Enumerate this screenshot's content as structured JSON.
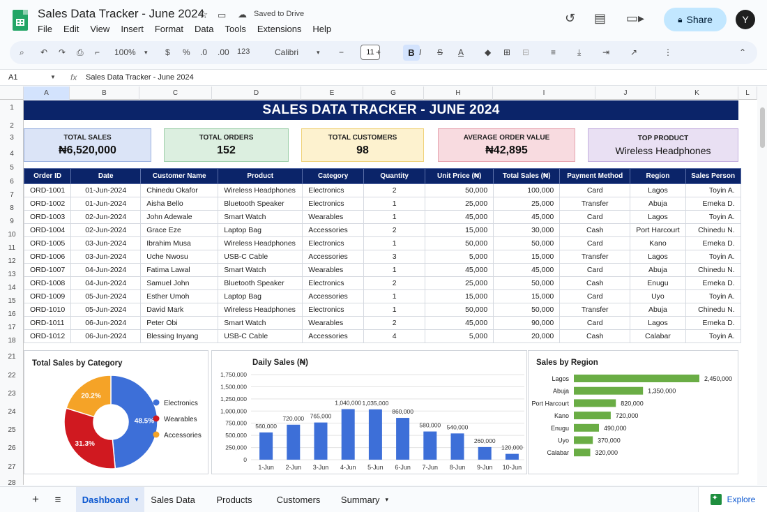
{
  "app": {
    "doc_title": "Sales Data Tracker - June 2024",
    "saved_status": "Saved to Drive",
    "menu": [
      "File",
      "Edit",
      "View",
      "Insert",
      "Format",
      "Data",
      "Tools",
      "Extensions",
      "Help"
    ],
    "share_label": "Share",
    "avatar_initial": "Y"
  },
  "toolbar": {
    "zoom": "100%",
    "currency": "$",
    "percent": "%",
    "dec_less": ".0",
    "dec_more": ".00",
    "format_more": "123",
    "font": "Calibri",
    "font_size": "11",
    "bold": "B",
    "italic": "I",
    "strike": "S",
    "text_color": "A"
  },
  "formula_bar": {
    "cell_ref": "A1",
    "fx": "fx",
    "value": "Sales Data Tracker - June 2024"
  },
  "columns": [
    "A",
    "B",
    "C",
    "D",
    "E",
    "G",
    "H",
    "I",
    "J",
    "K",
    "L"
  ],
  "rows": [
    "1",
    "2",
    "3",
    "4",
    "5",
    "6",
    "7",
    "8",
    "9",
    "10",
    "11",
    "12",
    "13",
    "14",
    "15",
    "16",
    "17",
    "18",
    "21",
    "22",
    "23",
    "24",
    "25",
    "26",
    "27",
    "28",
    "25",
    "26",
    "25",
    "26"
  ],
  "banner": "SALES DATA TRACKER - JUNE 2024",
  "kpis": [
    {
      "label": "TOTAL SALES",
      "value": "₦6,520,000",
      "bg": "#dbe4f7",
      "border": "#9db3e0"
    },
    {
      "label": "TOTAL ORDERS",
      "value": "152",
      "bg": "#dcefe0",
      "border": "#9fd0ab"
    },
    {
      "label": "TOTAL CUSTOMERS",
      "value": "98",
      "bg": "#fdf2cf",
      "border": "#efd27a"
    },
    {
      "label": "AVERAGE ORDER VALUE",
      "value": "₦42,895",
      "bg": "#f8dbe0",
      "border": "#e6a4af"
    },
    {
      "label": "TOP PRODUCT",
      "value": "Wireless Headphones",
      "bg": "#e9e0f3",
      "border": "#c4afdf"
    }
  ],
  "table": {
    "headers": [
      "Order ID",
      "Date",
      "Customer Name",
      "Product",
      "Category",
      "Quantity",
      "Unit Price (₦)",
      "Total Sales (₦)",
      "Payment Method",
      "Region",
      "Sales Person"
    ],
    "rows": [
      [
        "ORD-1001",
        "01-Jun-2024",
        "Chinedu Okafor",
        "Wireless Headphones",
        "Electronics",
        "2",
        "50,000",
        "100,000",
        "Card",
        "Lagos",
        "Toyin A."
      ],
      [
        "ORD-1002",
        "01-Jun-2024",
        "Aisha Bello",
        "Bluetooth Speaker",
        "Electronics",
        "1",
        "25,000",
        "25,000",
        "Transfer",
        "Abuja",
        "Emeka D."
      ],
      [
        "ORD-1003",
        "02-Jun-2024",
        "John Adewale",
        "Smart Watch",
        "Wearables",
        "1",
        "45,000",
        "45,000",
        "Card",
        "Lagos",
        "Toyin A."
      ],
      [
        "ORD-1004",
        "02-Jun-2024",
        "Grace Eze",
        "Laptop Bag",
        "Accessories",
        "2",
        "15,000",
        "30,000",
        "Cash",
        "Port Harcourt",
        "Chinedu N."
      ],
      [
        "ORD-1005",
        "03-Jun-2024",
        "Ibrahim Musa",
        "Wireless Headphones",
        "Electronics",
        "1",
        "50,000",
        "50,000",
        "Card",
        "Kano",
        "Emeka D."
      ],
      [
        "ORD-1006",
        "03-Jun-2024",
        "Uche Nwosu",
        "USB-C Cable",
        "Accessories",
        "3",
        "5,000",
        "15,000",
        "Transfer",
        "Lagos",
        "Toyin A."
      ],
      [
        "ORD-1007",
        "04-Jun-2024",
        "Fatima Lawal",
        "Smart Watch",
        "Wearables",
        "1",
        "45,000",
        "45,000",
        "Card",
        "Abuja",
        "Chinedu N."
      ],
      [
        "ORD-1008",
        "04-Jun-2024",
        "Samuel John",
        "Bluetooth Speaker",
        "Electronics",
        "2",
        "25,000",
        "50,000",
        "Cash",
        "Enugu",
        "Emeka D."
      ],
      [
        "ORD-1009",
        "05-Jun-2024",
        "Esther Umoh",
        "Laptop Bag",
        "Accessories",
        "1",
        "15,000",
        "15,000",
        "Card",
        "Uyo",
        "Toyin A."
      ],
      [
        "ORD-1010",
        "05-Jun-2024",
        "David Mark",
        "Wireless Headphones",
        "Electronics",
        "1",
        "50,000",
        "50,000",
        "Transfer",
        "Abuja",
        "Chinedu N."
      ],
      [
        "ORD-1011",
        "06-Jun-2024",
        "Peter Obi",
        "Smart Watch",
        "Wearables",
        "2",
        "45,000",
        "90,000",
        "Card",
        "Lagos",
        "Emeka D."
      ],
      [
        "ORD-1012",
        "06-Jun-2024",
        "Blessing Inyang",
        "USB-C Cable",
        "Accessories",
        "4",
        "5,000",
        "20,000",
        "Cash",
        "Calabar",
        "Toyin A."
      ]
    ]
  },
  "chart_data": [
    {
      "type": "pie",
      "title": "Total Sales by Category",
      "categories": [
        "Electronics",
        "Wearables",
        "Accessories"
      ],
      "values": [
        48.5,
        31.3,
        20.2
      ],
      "labels": [
        "48.5%",
        "31.3%",
        "20.2%"
      ],
      "colors": [
        "#3d6fd8",
        "#d01920",
        "#f5a327"
      ],
      "donut": true,
      "legend": "right"
    },
    {
      "type": "bar",
      "title": "Daily Sales (₦)",
      "categories": [
        "1-Jun",
        "2-Jun",
        "3-Jun",
        "4-Jun",
        "5-Jun",
        "6-Jun",
        "7-Jun",
        "8-Jun",
        "9-Jun",
        "10-Jun"
      ],
      "values": [
        560000,
        720000,
        765000,
        1040000,
        1035000,
        860000,
        580000,
        540000,
        260000,
        120000
      ],
      "value_labels": [
        "560,000",
        "720,000",
        "765,000",
        "1,040,000",
        "1,035,000",
        "860,000",
        "580,000",
        "540,000",
        "260,000",
        "120,000"
      ],
      "yticks": [
        "0",
        "250,000",
        "500,000",
        "750,000",
        "1,000,000",
        "1,250,000",
        "1,500,000",
        "1,750,000"
      ],
      "ylim": [
        0,
        1750000
      ],
      "color": "#3d6fd8",
      "grid": true
    },
    {
      "type": "bar",
      "orientation": "horizontal",
      "title": "Sales by Region",
      "categories": [
        "Lagos",
        "Abuja",
        "Port Harcourt",
        "Kano",
        "Enugu",
        "Uyo",
        "Calabar"
      ],
      "values": [
        2450000,
        1350000,
        820000,
        720000,
        490000,
        370000,
        320000
      ],
      "value_labels": [
        "2,450,000",
        "1,350,000",
        "820,000",
        "720,000",
        "490,000",
        "370,000",
        "320,000"
      ],
      "color": "#6aad45"
    }
  ],
  "sheet_tabs": [
    "Dashboard",
    "Sales Data",
    "Products",
    "Customers",
    "Summary"
  ],
  "explore_label": "Explore"
}
